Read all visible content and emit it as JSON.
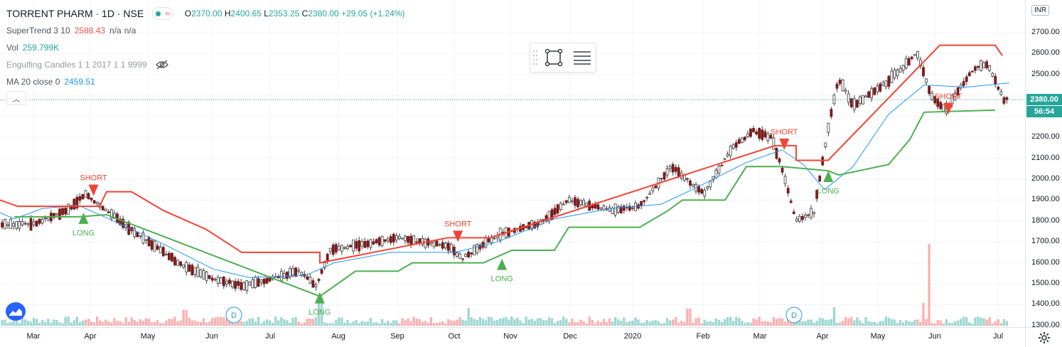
{
  "header": {
    "symbol": "TORRENT PHARM · 1D · NSE",
    "open_label": "O",
    "open": "2370.00",
    "high_label": "H",
    "high": "2400.65",
    "low_label": "L",
    "low": "2353.25",
    "close_label": "C",
    "close": "2380.00",
    "change": "+29.05 (+1.24%)"
  },
  "indicators": [
    {
      "name": "SuperTrend 3 10",
      "values": [
        "2588.43",
        "n/a",
        "n/a"
      ],
      "value_color": "#ef5350"
    },
    {
      "name": "Vol",
      "values": [
        "259.799K"
      ],
      "value_color": "#26a69a"
    },
    {
      "name": "Engulfing Candles 1 1 2017 1 1 9999",
      "values": [],
      "hidden": true
    },
    {
      "name": "MA 20 close 0",
      "values": [
        "2459.51"
      ],
      "value_color": "#2196f3"
    }
  ],
  "price_axis": {
    "currency": "INR",
    "ticks": [
      "2700.00",
      "2600.00",
      "2500.00",
      "2400.00",
      "2300.00",
      "2200.00",
      "2100.00",
      "2000.00",
      "1900.00",
      "1800.00",
      "1700.00",
      "1600.00",
      "1500.00",
      "1400.00",
      "1300.00"
    ],
    "last_price": "2380.00",
    "countdown": "56:54"
  },
  "time_axis": [
    "Mar",
    "Apr",
    "May",
    "Jun",
    "Jul",
    "Aug",
    "Sep",
    "Oct",
    "Nov",
    "Dec",
    "2020",
    "Feb",
    "Mar",
    "Apr",
    "May",
    "Jun",
    "Jul"
  ],
  "signals": {
    "short": "SHORT",
    "long": "LONG",
    "dividend": "D"
  },
  "colors": {
    "up": "#26a69a",
    "down": "#ef5350",
    "candle_up_body": "#ffffff",
    "candle_down": "#7b1b1b",
    "st_up": "#4caf50",
    "st_down": "#f44336",
    "ma": "#2196f3"
  },
  "chart_data": {
    "type": "candlestick",
    "x_range": [
      "2019-02-15",
      "2020-07-06"
    ],
    "ylim": [
      1300,
      2750
    ],
    "ma20_key": [
      [
        0,
        1840
      ],
      [
        20,
        1810
      ],
      [
        60,
        1860
      ],
      [
        110,
        1875
      ],
      [
        160,
        1800
      ],
      [
        230,
        1690
      ],
      [
        300,
        1570
      ],
      [
        350,
        1530
      ],
      [
        430,
        1540
      ],
      [
        470,
        1600
      ],
      [
        550,
        1650
      ],
      [
        640,
        1650
      ],
      [
        700,
        1700
      ],
      [
        780,
        1810
      ],
      [
        860,
        1860
      ],
      [
        930,
        1880
      ],
      [
        980,
        1960
      ],
      [
        1050,
        2080
      ],
      [
        1100,
        2140
      ],
      [
        1130,
        2070
      ],
      [
        1160,
        1950
      ],
      [
        1200,
        2060
      ],
      [
        1250,
        2310
      ],
      [
        1300,
        2450
      ],
      [
        1360,
        2440
      ],
      [
        1420,
        2460
      ]
    ],
    "supertrend_down": [
      [
        0,
        1900
      ],
      [
        25,
        1870
      ],
      [
        140,
        1870
      ],
      [
        150,
        1940
      ],
      [
        185,
        1940
      ],
      [
        230,
        1850
      ],
      [
        290,
        1760
      ],
      [
        340,
        1650
      ],
      [
        450,
        1650
      ],
      [
        450,
        1600
      ],
      [
        630,
        1720
      ],
      [
        690,
        1720
      ],
      [
        1090,
        2160
      ],
      [
        1120,
        2160
      ],
      [
        1120,
        2090
      ],
      [
        1165,
        2090
      ],
      [
        1322,
        2640
      ],
      [
        1400,
        2640
      ],
      [
        1410,
        2590
      ]
    ],
    "supertrend_up": [
      [
        20,
        1820
      ],
      [
        110,
        1820
      ],
      [
        150,
        1830
      ],
      [
        450,
        1440
      ],
      [
        500,
        1560
      ],
      [
        560,
        1560
      ],
      [
        580,
        1600
      ],
      [
        680,
        1600
      ],
      [
        720,
        1660
      ],
      [
        780,
        1660
      ],
      [
        800,
        1770
      ],
      [
        900,
        1770
      ],
      [
        940,
        1850
      ],
      [
        960,
        1900
      ],
      [
        1020,
        1900
      ],
      [
        1050,
        2060
      ],
      [
        1100,
        2060
      ],
      [
        1165,
        2040
      ],
      [
        1180,
        2020
      ],
      [
        1250,
        2070
      ],
      [
        1280,
        2190
      ],
      [
        1300,
        2320
      ],
      [
        1400,
        2330
      ]
    ],
    "markers": [
      {
        "type": "SHORT",
        "date": "2019-04-02",
        "price": 1940
      },
      {
        "type": "LONG",
        "date": "2019-03-28",
        "price": 1820
      },
      {
        "type": "LONG",
        "date": "2019-07-24",
        "price": 1440
      },
      {
        "type": "SHORT",
        "date": "2019-10-01",
        "price": 1720
      },
      {
        "type": "LONG",
        "date": "2019-10-23",
        "price": 1600
      },
      {
        "type": "SHORT",
        "date": "2020-03-12",
        "price": 2160
      },
      {
        "type": "LONG",
        "date": "2020-04-03",
        "price": 2020
      },
      {
        "type": "SHORT",
        "date": "2020-06-02",
        "price": 2330
      }
    ]
  }
}
